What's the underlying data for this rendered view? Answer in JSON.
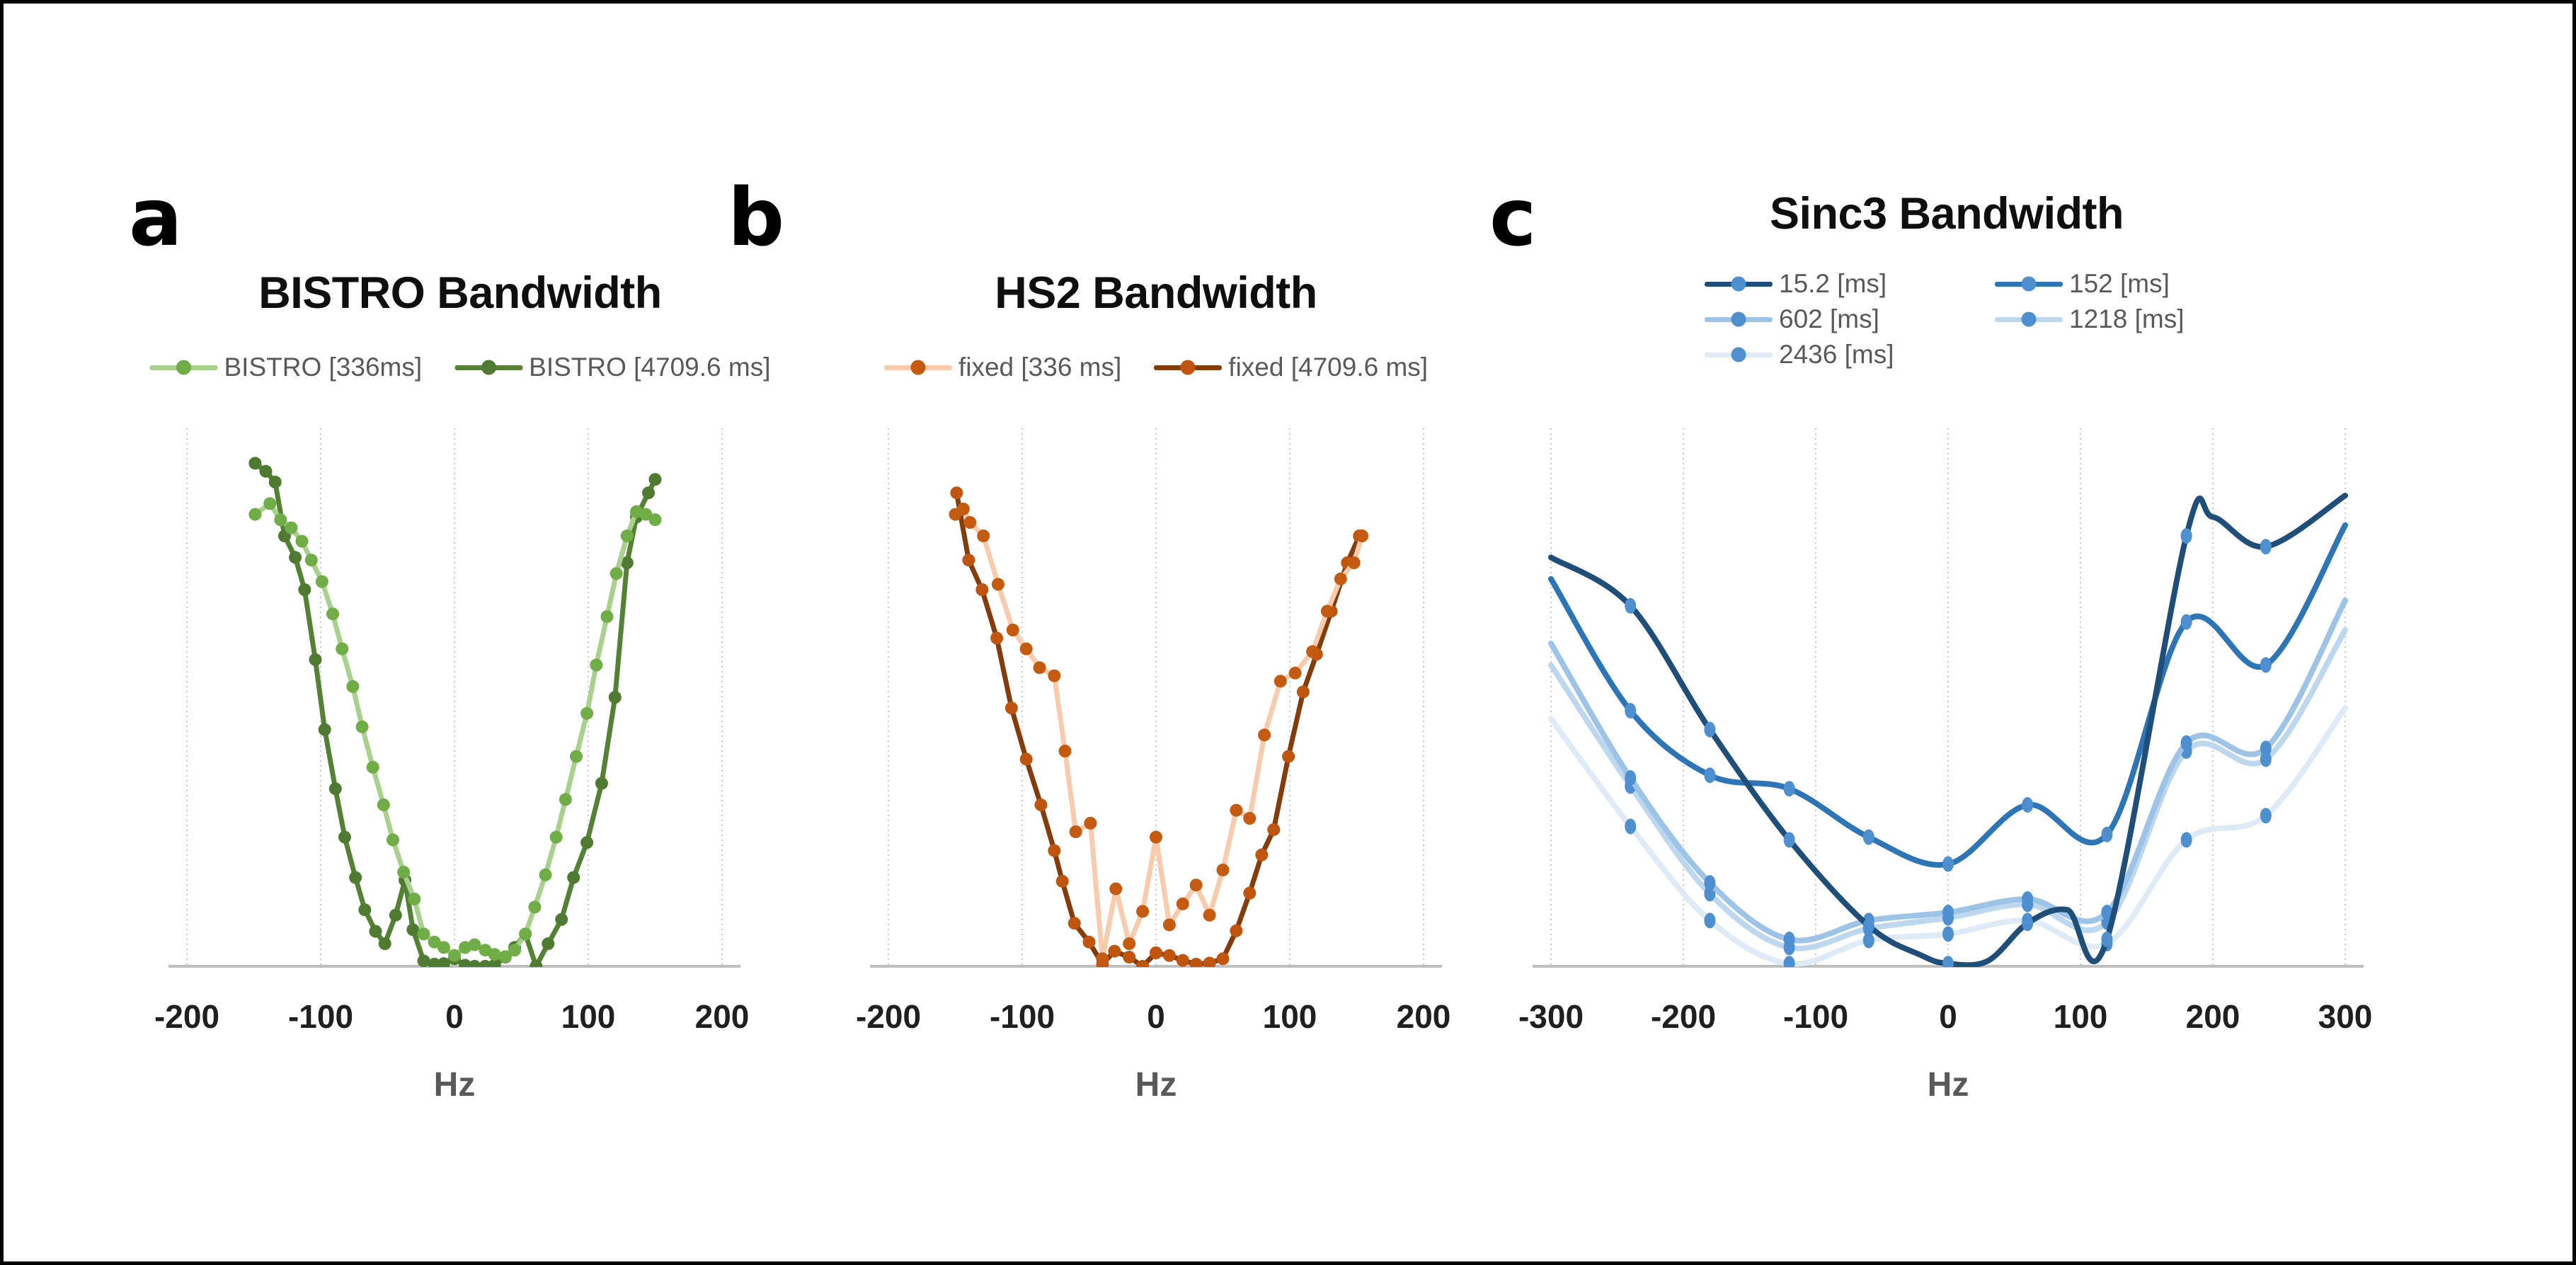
{
  "page": {
    "background": "#ffffff",
    "frame_color": "#000000"
  },
  "panel_letters": [
    "a",
    "b",
    "c"
  ],
  "text_colors": {
    "title": "#0f0f0f",
    "tick": "#1f1f1f",
    "axis_label": "#595959",
    "legend": "#595959"
  },
  "chart_data": [
    {
      "type": "line",
      "panel_letter": "a",
      "title": "BISTRO Bandwidth",
      "xlabel": "Hz",
      "ylabel": "",
      "xlim": [
        -200,
        200
      ],
      "ylim": [
        0,
        1
      ],
      "y_units": "normalized (no y-axis ticks shown)",
      "grid": "vertical-dotted",
      "legend_position": "top",
      "line_style": "straight",
      "marker_shape": "circle",
      "xticks": [
        -200,
        -100,
        0,
        100,
        200
      ],
      "xtick_labels": [
        "-200",
        "-100",
        "0",
        "100",
        "200"
      ],
      "series": [
        {
          "name": "BISTRO [336ms]",
          "line_color": "#a9d18e",
          "marker_color": "#70ad47",
          "x": [
            -149,
            -138,
            -130,
            -122,
            -114,
            -107,
            -99,
            -91,
            -84,
            -76,
            -69,
            -61,
            -53,
            -46,
            -38,
            -30,
            -23,
            -15,
            -8,
            0,
            8,
            15,
            23,
            30,
            38,
            45,
            53,
            60,
            68,
            76,
            83,
            91,
            99,
            106,
            114,
            121,
            129,
            136,
            143,
            150
          ],
          "y": [
            0.84,
            0.86,
            0.83,
            0.815,
            0.79,
            0.755,
            0.715,
            0.655,
            0.59,
            0.52,
            0.445,
            0.37,
            0.3,
            0.235,
            0.175,
            0.125,
            0.06,
            0.045,
            0.035,
            0.02,
            0.035,
            0.04,
            0.03,
            0.022,
            0.018,
            0.03,
            0.06,
            0.11,
            0.17,
            0.24,
            0.31,
            0.39,
            0.47,
            0.56,
            0.65,
            0.73,
            0.8,
            0.845,
            0.84,
            0.83
          ]
        },
        {
          "name": "BISTRO [4709.6 ms]",
          "line_color": "#548235",
          "marker_color": "#4e7a31",
          "x": [
            -149,
            -141,
            -134,
            -127,
            -119,
            -112,
            -104,
            -97,
            -89,
            -82,
            -74,
            -67,
            -59,
            -52,
            -44,
            -37,
            -31,
            -23,
            -15,
            -8,
            0,
            8,
            15,
            23,
            30,
            38,
            45,
            53,
            61,
            70,
            80,
            89,
            99,
            110,
            120,
            129,
            136,
            145,
            150
          ],
          "y": [
            0.935,
            0.92,
            0.9,
            0.8,
            0.76,
            0.7,
            0.57,
            0.44,
            0.33,
            0.24,
            0.165,
            0.105,
            0.065,
            0.042,
            0.095,
            0.16,
            0.068,
            0.01,
            0.004,
            0.005,
            0.014,
            0.002,
            0.0,
            0.0,
            0.002,
            0.017,
            0.035,
            0.06,
            0.0,
            0.042,
            0.087,
            0.165,
            0.23,
            0.34,
            0.5,
            0.75,
            0.835,
            0.88,
            0.905
          ]
        }
      ]
    },
    {
      "type": "line",
      "panel_letter": "b",
      "title": "HS2 Bandwidth",
      "xlabel": "Hz",
      "ylabel": "",
      "xlim": [
        -200,
        200
      ],
      "ylim": [
        0,
        1
      ],
      "y_units": "normalized (no y-axis ticks shown)",
      "grid": "vertical-dotted",
      "legend_position": "top",
      "line_style": "straight",
      "marker_shape": "circle",
      "xticks": [
        -200,
        -100,
        0,
        100,
        200
      ],
      "xtick_labels": [
        "-200",
        "-100",
        "0",
        "100",
        "200"
      ],
      "series": [
        {
          "name": "fixed [336 ms]",
          "line_color": "#f8cbad",
          "marker_color": "#c55a11",
          "x": [
            -150,
            -144,
            -139,
            -129,
            -118,
            -107,
            -97,
            -87,
            -76,
            -68,
            -60,
            -49,
            -40,
            -30,
            -20,
            -10,
            0,
            10,
            20,
            30,
            40,
            50,
            60,
            70,
            81,
            93,
            104,
            117,
            128,
            138,
            148,
            154
          ],
          "y": [
            0.84,
            0.85,
            0.825,
            0.8,
            0.71,
            0.625,
            0.59,
            0.555,
            0.54,
            0.4,
            0.25,
            0.266,
            0.014,
            0.144,
            0.042,
            0.102,
            0.24,
            0.077,
            0.116,
            0.151,
            0.095,
            0.179,
            0.29,
            0.275,
            0.43,
            0.53,
            0.545,
            0.585,
            0.66,
            0.72,
            0.75,
            0.8
          ]
        },
        {
          "name": "fixed [4709.6 ms]",
          "line_color": "#843c0c",
          "marker_color": "#c0550f",
          "x": [
            -149,
            -140,
            -130,
            -119,
            -108,
            -97,
            -86,
            -76,
            -70,
            -61,
            -50,
            -40,
            -31,
            -20,
            -10,
            0,
            10,
            20,
            30,
            40,
            50,
            60,
            70,
            79,
            88,
            99,
            110,
            120,
            131,
            143,
            152
          ],
          "y": [
            0.88,
            0.755,
            0.7,
            0.61,
            0.48,
            0.385,
            0.3,
            0.215,
            0.158,
            0.08,
            0.045,
            0.004,
            0.028,
            0.017,
            0.0,
            0.025,
            0.02,
            0.011,
            0.004,
            0.006,
            0.014,
            0.066,
            0.136,
            0.207,
            0.254,
            0.39,
            0.51,
            0.58,
            0.66,
            0.75,
            0.8
          ]
        }
      ]
    },
    {
      "type": "line",
      "panel_letter": "c",
      "title": "Sinc3 Bandwidth",
      "xlabel": "Hz",
      "ylabel": "",
      "xlim": [
        -300,
        300
      ],
      "ylim": [
        0,
        1
      ],
      "y_units": "normalized (no y-axis ticks shown)",
      "grid": "vertical-dotted",
      "legend_position": "top-two-columns",
      "line_style": "smooth",
      "marker_shape": "ellipse",
      "xticks": [
        -300,
        -200,
        -100,
        0,
        100,
        200,
        300
      ],
      "xtick_labels": [
        "-300",
        "-200",
        "-100",
        "0",
        "100",
        "200",
        "300"
      ],
      "series": [
        {
          "name": "15.2 [ms]",
          "line_color": "#1f4e79",
          "marker_color": "#4e8fd0",
          "marker_x": [
            -240,
            -180,
            -120,
            -60,
            0,
            60,
            120,
            180,
            240
          ],
          "x": [
            -300,
            -240,
            -180,
            -120,
            -60,
            -20,
            0,
            30,
            60,
            90,
            120,
            180,
            200,
            240,
            300
          ],
          "y": [
            0.76,
            0.67,
            0.44,
            0.235,
            0.075,
            0.02,
            0.005,
            0.01,
            0.08,
            0.105,
            0.05,
            0.8,
            0.835,
            0.78,
            0.875
          ]
        },
        {
          "name": "152 [ms]",
          "line_color": "#2e75b6",
          "marker_color": "#4e8fd0",
          "marker_x": [
            -240,
            -180,
            -120,
            -60,
            0,
            60,
            120,
            180,
            240
          ],
          "x": [
            -300,
            -240,
            -180,
            -120,
            -60,
            0,
            60,
            120,
            180,
            240,
            300
          ],
          "y": [
            0.72,
            0.475,
            0.355,
            0.33,
            0.24,
            0.19,
            0.3,
            0.245,
            0.64,
            0.56,
            0.82
          ]
        },
        {
          "name": "602 [ms]",
          "line_color": "#9dc3e6",
          "marker_color": "#4e8fd0",
          "marker_x": [
            -240,
            -180,
            -120,
            -60,
            0,
            60,
            120,
            180,
            240
          ],
          "x": [
            -300,
            -240,
            -180,
            -120,
            -60,
            0,
            60,
            120,
            180,
            240,
            300
          ],
          "y": [
            0.6,
            0.35,
            0.155,
            0.05,
            0.085,
            0.1,
            0.125,
            0.1,
            0.415,
            0.405,
            0.68
          ]
        },
        {
          "name": "1218 [ms]",
          "line_color": "#bdd7ee",
          "marker_color": "#4e8fd0",
          "marker_x": [
            -240,
            -180,
            -120,
            -60,
            0,
            60,
            120,
            180,
            240
          ],
          "x": [
            -300,
            -240,
            -180,
            -120,
            -60,
            0,
            60,
            120,
            180,
            240,
            300
          ],
          "y": [
            0.56,
            0.335,
            0.135,
            0.035,
            0.07,
            0.09,
            0.115,
            0.082,
            0.4,
            0.385,
            0.625
          ]
        },
        {
          "name": "2436 [ms]",
          "line_color": "#deebf7",
          "marker_color": "#4e8fd0",
          "marker_x": [
            -240,
            -180,
            -120,
            -60,
            0,
            60,
            120,
            180,
            240
          ],
          "x": [
            -300,
            -240,
            -180,
            -120,
            -60,
            0,
            60,
            120,
            180,
            240,
            300
          ],
          "y": [
            0.46,
            0.26,
            0.085,
            0.005,
            0.048,
            0.06,
            0.085,
            0.042,
            0.235,
            0.28,
            0.48
          ]
        }
      ]
    }
  ]
}
